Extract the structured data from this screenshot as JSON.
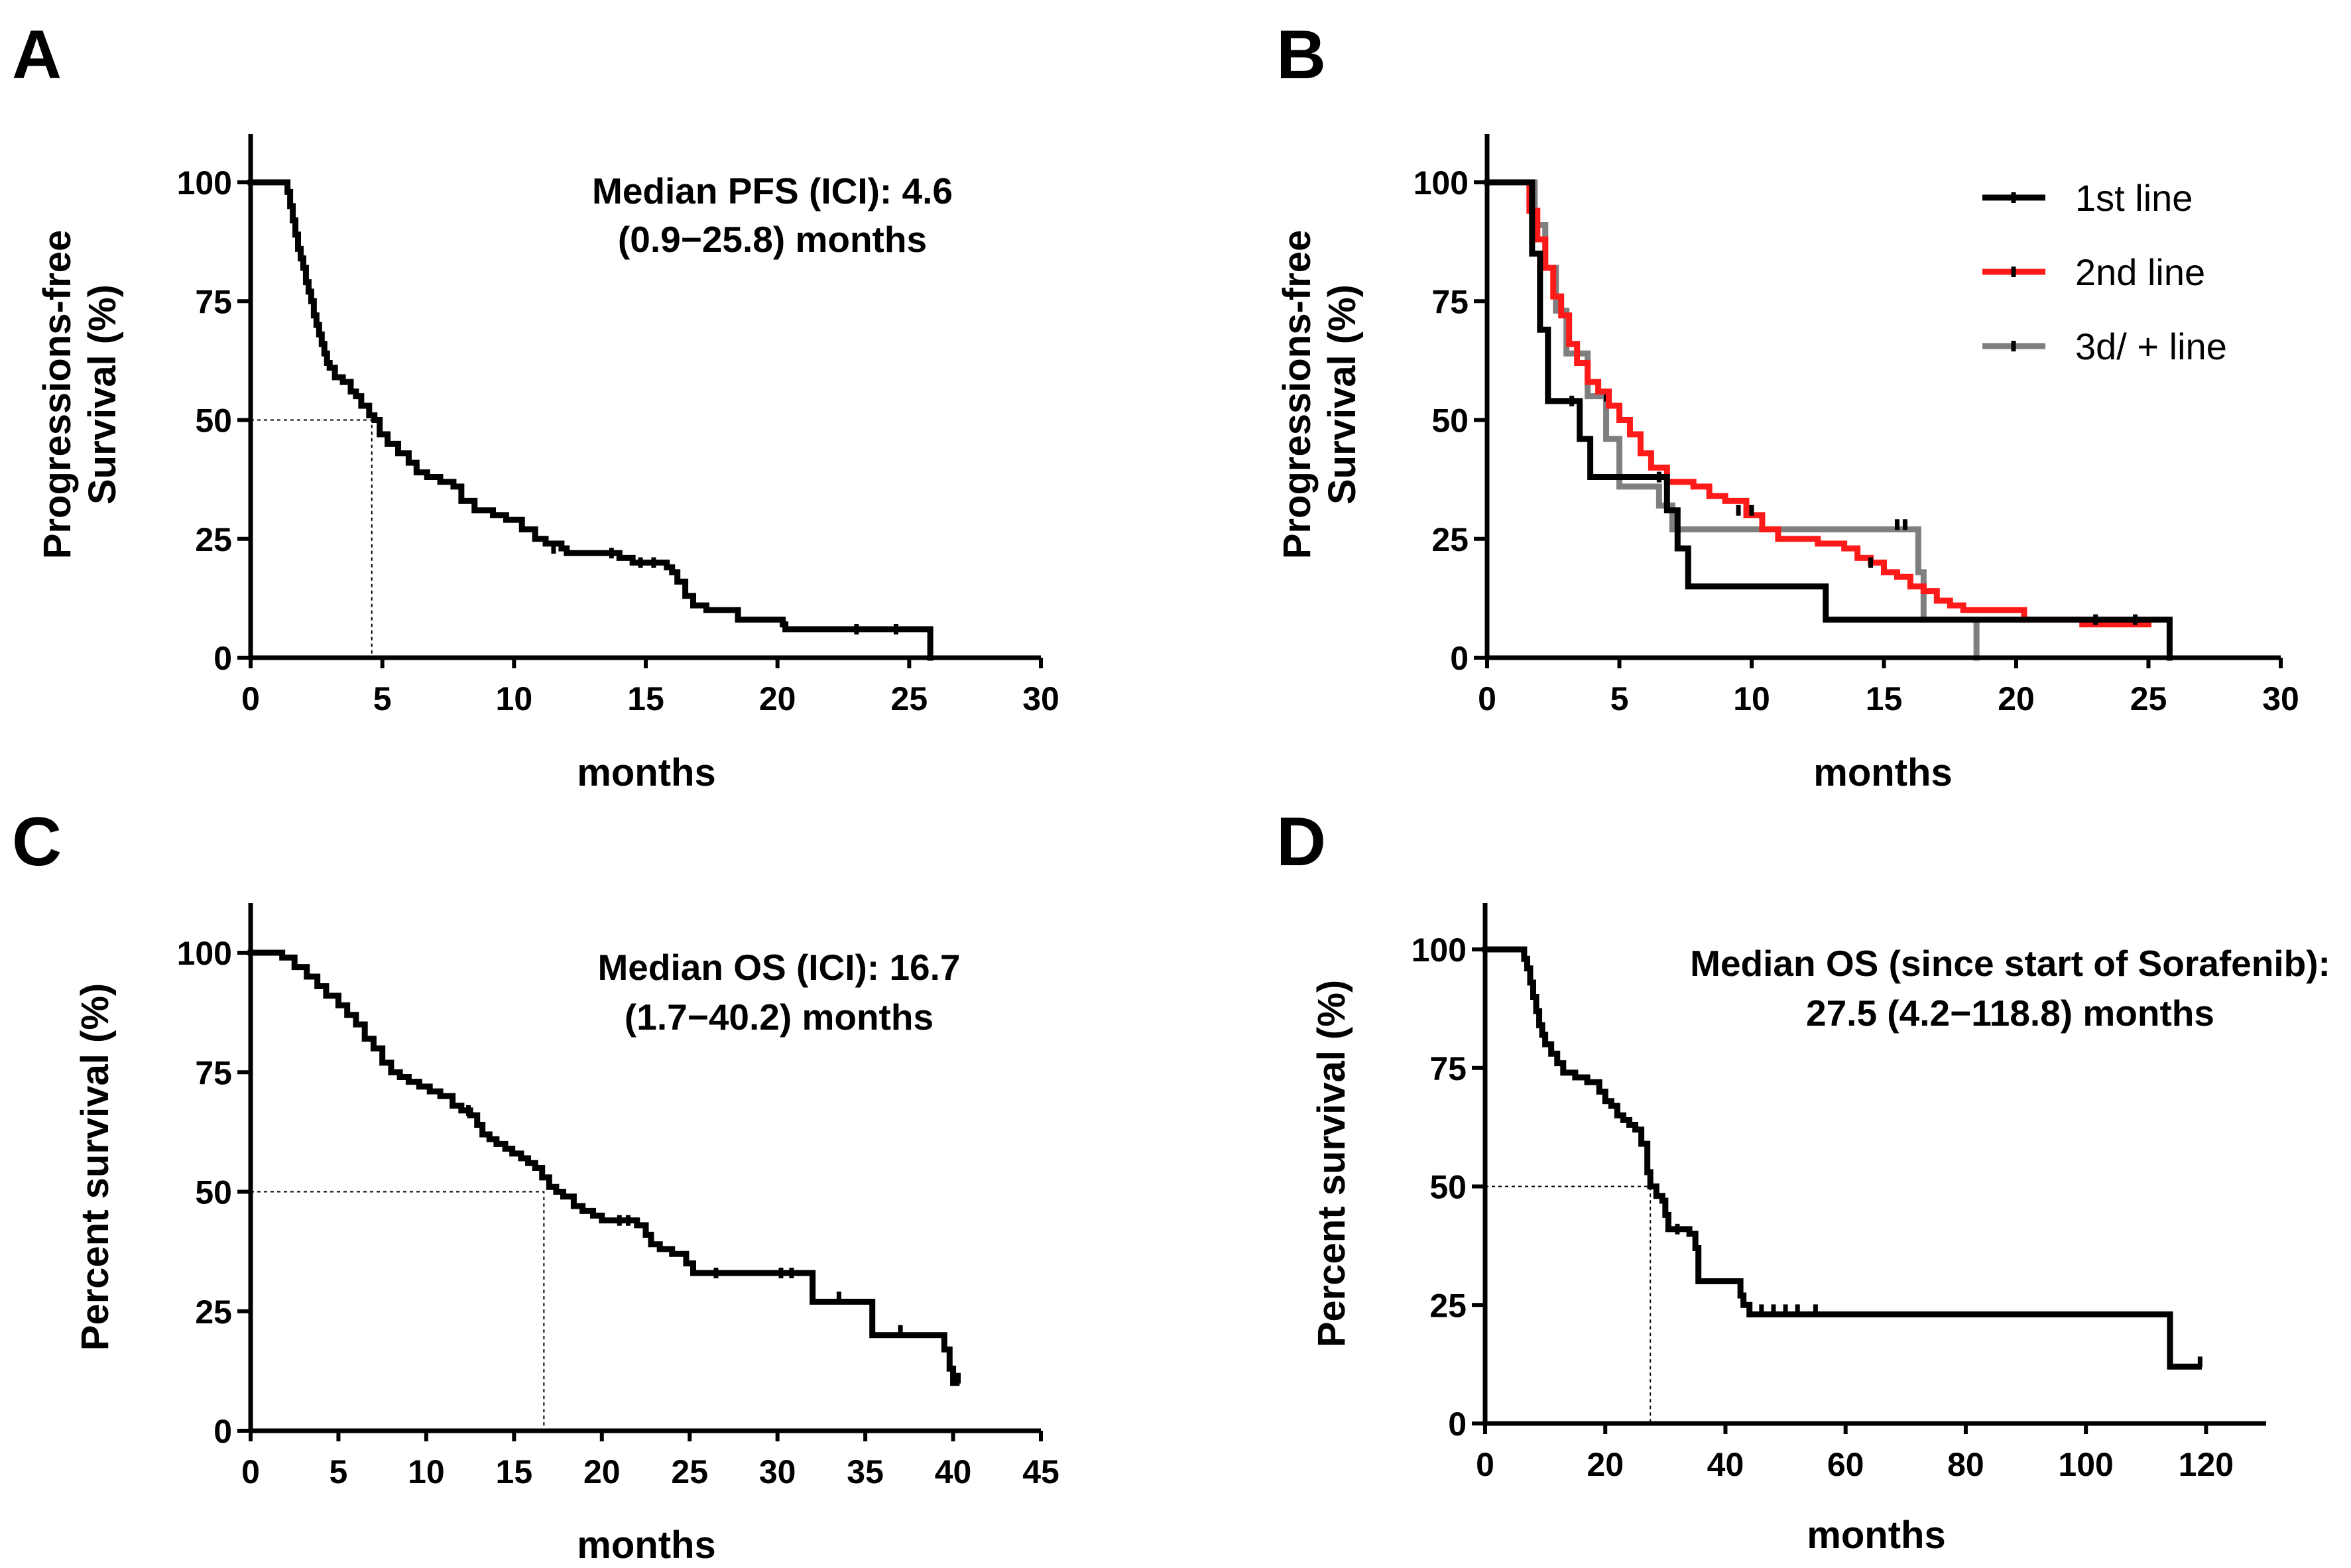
{
  "chart_data": [
    {
      "panel": "A",
      "type": "line",
      "ylabel_lines": [
        "Progressions-free",
        "Survival (%)"
      ],
      "xlabel": "months",
      "xlim": [
        0,
        30
      ],
      "ylim": [
        0,
        110
      ],
      "xticks": [
        0,
        5,
        10,
        15,
        20,
        25,
        30
      ],
      "yticks": [
        0,
        25,
        50,
        75,
        100
      ],
      "annotation_lines": [
        "Median PFS (ICI):  4.6",
        "(0.9−25.8) months"
      ],
      "median_x": 4.6,
      "series": [
        {
          "name": "ICI",
          "color": "#000000",
          "steps": [
            [
              0,
              100
            ],
            [
              1.3,
              100
            ],
            [
              1.4,
              98
            ],
            [
              1.5,
              95
            ],
            [
              1.6,
              92
            ],
            [
              1.7,
              89
            ],
            [
              1.8,
              86
            ],
            [
              1.9,
              84
            ],
            [
              2.0,
              82
            ],
            [
              2.1,
              79
            ],
            [
              2.2,
              77
            ],
            [
              2.3,
              75
            ],
            [
              2.4,
              72
            ],
            [
              2.5,
              70
            ],
            [
              2.6,
              68
            ],
            [
              2.7,
              66
            ],
            [
              2.8,
              64
            ],
            [
              2.9,
              62
            ],
            [
              3.0,
              61
            ],
            [
              3.2,
              59
            ],
            [
              3.5,
              58
            ],
            [
              3.8,
              56
            ],
            [
              4.0,
              55
            ],
            [
              4.2,
              53
            ],
            [
              4.5,
              51
            ],
            [
              4.7,
              50
            ],
            [
              4.9,
              47
            ],
            [
              5.2,
              45
            ],
            [
              5.6,
              43
            ],
            [
              6.0,
              41
            ],
            [
              6.3,
              39
            ],
            [
              6.7,
              38
            ],
            [
              7.2,
              37
            ],
            [
              7.7,
              36
            ],
            [
              8.0,
              33
            ],
            [
              8.5,
              31
            ],
            [
              9.2,
              30
            ],
            [
              9.7,
              29
            ],
            [
              10.3,
              27
            ],
            [
              10.8,
              25
            ],
            [
              11.2,
              24
            ],
            [
              11.8,
              23
            ],
            [
              12.0,
              22
            ],
            [
              14.0,
              21
            ],
            [
              14.5,
              20
            ],
            [
              15.5,
              20
            ],
            [
              15.8,
              19
            ],
            [
              16.0,
              18
            ],
            [
              16.2,
              16
            ],
            [
              16.5,
              13
            ],
            [
              16.8,
              11
            ],
            [
              17.3,
              10
            ],
            [
              18.5,
              8
            ],
            [
              20.2,
              7
            ],
            [
              20.3,
              6
            ],
            [
              25.8,
              6
            ],
            [
              25.8,
              0
            ]
          ],
          "censor": [
            [
              11.5,
              23
            ],
            [
              13.7,
              22
            ],
            [
              14.8,
              20
            ],
            [
              15.3,
              20
            ],
            [
              23.0,
              6
            ],
            [
              24.5,
              6
            ]
          ]
        }
      ]
    },
    {
      "panel": "B",
      "type": "line",
      "ylabel_lines": [
        "Progressions-free",
        "Survival (%)"
      ],
      "xlabel": "months",
      "xlim": [
        0,
        30
      ],
      "ylim": [
        0,
        110
      ],
      "xticks": [
        0,
        5,
        10,
        15,
        20,
        25,
        30
      ],
      "yticks": [
        0,
        25,
        50,
        75,
        100
      ],
      "legend_location": "top-right",
      "series": [
        {
          "name": "3d/ + line",
          "color": "#7f7f7f",
          "steps": [
            [
              0,
              100
            ],
            [
              1.4,
              100
            ],
            [
              1.8,
              91
            ],
            [
              2.2,
              82
            ],
            [
              2.6,
              73
            ],
            [
              3.0,
              64
            ],
            [
              3.8,
              55
            ],
            [
              4.5,
              46
            ],
            [
              5.0,
              36
            ],
            [
              6.5,
              32
            ],
            [
              7.0,
              27
            ],
            [
              16.0,
              27
            ],
            [
              16.3,
              18
            ],
            [
              16.5,
              8
            ],
            [
              18.5,
              8
            ],
            [
              18.5,
              0
            ]
          ],
          "censor": [
            [
              4.5,
              55
            ],
            [
              15.5,
              28
            ],
            [
              15.8,
              28
            ]
          ]
        },
        {
          "name": "2nd line",
          "color": "#ff1a1a",
          "steps": [
            [
              0,
              100
            ],
            [
              1.3,
              100
            ],
            [
              1.6,
              94
            ],
            [
              1.9,
              88
            ],
            [
              2.2,
              82
            ],
            [
              2.5,
              76
            ],
            [
              2.8,
              72
            ],
            [
              3.1,
              66
            ],
            [
              3.4,
              62
            ],
            [
              3.8,
              58
            ],
            [
              4.2,
              56
            ],
            [
              4.6,
              53
            ],
            [
              5.0,
              50
            ],
            [
              5.4,
              47
            ],
            [
              5.8,
              43
            ],
            [
              6.2,
              40
            ],
            [
              6.8,
              37
            ],
            [
              7.8,
              36
            ],
            [
              8.4,
              34
            ],
            [
              9.0,
              33
            ],
            [
              9.8,
              30
            ],
            [
              10.4,
              27
            ],
            [
              11.0,
              25
            ],
            [
              12.5,
              24
            ],
            [
              13.5,
              23
            ],
            [
              14.0,
              21
            ],
            [
              14.5,
              20
            ],
            [
              15.0,
              18
            ],
            [
              15.5,
              17
            ],
            [
              16.0,
              15
            ],
            [
              16.5,
              14
            ],
            [
              17.0,
              12
            ],
            [
              17.5,
              11
            ],
            [
              18.0,
              10
            ],
            [
              20.3,
              8
            ],
            [
              22.5,
              7
            ],
            [
              25.0,
              7
            ]
          ],
          "censor": [
            [
              9.5,
              31
            ],
            [
              10.0,
              31
            ],
            [
              14.5,
              20
            ],
            [
              23.0,
              8
            ],
            [
              24.5,
              8
            ]
          ]
        },
        {
          "name": "1st line",
          "color": "#000000",
          "steps": [
            [
              0,
              100
            ],
            [
              1.5,
              100
            ],
            [
              1.7,
              85
            ],
            [
              2.0,
              69
            ],
            [
              2.3,
              54
            ],
            [
              3.5,
              46
            ],
            [
              3.9,
              38
            ],
            [
              6.8,
              31
            ],
            [
              7.2,
              23
            ],
            [
              7.6,
              15
            ],
            [
              12.8,
              8
            ],
            [
              25.8,
              8
            ],
            [
              25.8,
              0
            ]
          ],
          "censor": [
            [
              3.2,
              54
            ],
            [
              6.5,
              38
            ]
          ]
        }
      ]
    },
    {
      "panel": "C",
      "type": "line",
      "ylabel_lines": [
        "Percent survival (%)"
      ],
      "xlabel": "months",
      "xlim": [
        0,
        45
      ],
      "ylim": [
        0,
        110
      ],
      "xticks": [
        0,
        5,
        10,
        15,
        20,
        25,
        30,
        35,
        40,
        45
      ],
      "yticks": [
        0,
        25,
        50,
        75,
        100
      ],
      "annotation_lines": [
        "Median OS (ICI):  16.7",
        "(1.7−40.2) months"
      ],
      "median_x": 16.7,
      "series": [
        {
          "name": "ICI",
          "color": "#000000",
          "steps": [
            [
              0,
              100
            ],
            [
              1.5,
              100
            ],
            [
              1.8,
              99
            ],
            [
              2.5,
              97
            ],
            [
              3.2,
              95
            ],
            [
              3.8,
              93
            ],
            [
              4.3,
              91
            ],
            [
              5.0,
              89
            ],
            [
              5.5,
              87
            ],
            [
              6.0,
              85
            ],
            [
              6.5,
              82
            ],
            [
              7.0,
              80
            ],
            [
              7.5,
              77
            ],
            [
              8.0,
              75
            ],
            [
              8.5,
              74
            ],
            [
              9.0,
              73
            ],
            [
              9.6,
              72
            ],
            [
              10.2,
              71
            ],
            [
              10.8,
              70
            ],
            [
              11.5,
              68
            ],
            [
              12.0,
              67
            ],
            [
              12.5,
              66
            ],
            [
              12.9,
              64
            ],
            [
              13.2,
              62
            ],
            [
              13.6,
              61
            ],
            [
              14.0,
              60
            ],
            [
              14.5,
              59
            ],
            [
              14.9,
              58
            ],
            [
              15.4,
              57
            ],
            [
              15.8,
              56
            ],
            [
              16.2,
              55
            ],
            [
              16.6,
              53
            ],
            [
              17.0,
              51
            ],
            [
              17.4,
              50
            ],
            [
              17.8,
              49
            ],
            [
              18.4,
              47
            ],
            [
              18.9,
              46
            ],
            [
              19.5,
              45
            ],
            [
              20.0,
              44
            ],
            [
              22.0,
              43
            ],
            [
              22.5,
              41
            ],
            [
              22.8,
              39
            ],
            [
              23.3,
              38
            ],
            [
              24.0,
              37
            ],
            [
              24.8,
              35
            ],
            [
              25.2,
              33
            ],
            [
              32.0,
              33
            ],
            [
              32.0,
              27
            ],
            [
              35.4,
              27
            ],
            [
              35.4,
              20
            ],
            [
              39.5,
              20
            ],
            [
              39.5,
              17
            ],
            [
              39.8,
              13
            ],
            [
              40.0,
              10
            ],
            [
              40.2,
              10
            ]
          ],
          "censor": [
            [
              12.4,
              67
            ],
            [
              21.0,
              44
            ],
            [
              21.5,
              44
            ],
            [
              26.5,
              33
            ],
            [
              30.2,
              33
            ],
            [
              30.8,
              33
            ],
            [
              33.5,
              28
            ],
            [
              37.0,
              21
            ],
            [
              40.3,
              11
            ]
          ]
        }
      ]
    },
    {
      "panel": "D",
      "type": "line",
      "ylabel_lines": [
        "Percent survival (%)"
      ],
      "xlabel": "months",
      "xlim": [
        0,
        130
      ],
      "ylim": [
        0,
        110
      ],
      "xticks": [
        0,
        20,
        40,
        60,
        80,
        100,
        120
      ],
      "yticks": [
        0,
        25,
        50,
        75,
        100
      ],
      "annotation_lines": [
        "Median OS (since start of Sorafenib):",
        "27.5 (4.2−118.8) months"
      ],
      "median_x": 27.5,
      "series": [
        {
          "name": "Sorafenib",
          "color": "#000000",
          "steps": [
            [
              0,
              100
            ],
            [
              6.0,
              100
            ],
            [
              6.5,
              98
            ],
            [
              7.0,
              96
            ],
            [
              7.5,
              93
            ],
            [
              8.0,
              90
            ],
            [
              8.5,
              87
            ],
            [
              9.0,
              84
            ],
            [
              9.5,
              82
            ],
            [
              10.0,
              80
            ],
            [
              11.0,
              78
            ],
            [
              12.0,
              76
            ],
            [
              13.0,
              74
            ],
            [
              15.0,
              73
            ],
            [
              17.0,
              72
            ],
            [
              19.0,
              70
            ],
            [
              20.0,
              68
            ],
            [
              21.0,
              67
            ],
            [
              22.0,
              65
            ],
            [
              23.0,
              64
            ],
            [
              24.0,
              63
            ],
            [
              25.0,
              62
            ],
            [
              26.0,
              59
            ],
            [
              27.0,
              53
            ],
            [
              27.5,
              50
            ],
            [
              28.5,
              48
            ],
            [
              29.5,
              47
            ],
            [
              30.0,
              44
            ],
            [
              30.5,
              41
            ],
            [
              34.0,
              40
            ],
            [
              35.0,
              37
            ],
            [
              35.5,
              30
            ],
            [
              42.0,
              30
            ],
            [
              42.5,
              27
            ],
            [
              43.0,
              25
            ],
            [
              44.0,
              23
            ],
            [
              114.0,
              23
            ],
            [
              114.0,
              12
            ],
            [
              118.8,
              12
            ]
          ],
          "censor": [
            [
              32.0,
              41
            ],
            [
              46.0,
              24
            ],
            [
              48.0,
              24
            ],
            [
              50.0,
              24
            ],
            [
              52.0,
              24
            ],
            [
              55.0,
              24
            ],
            [
              119.0,
              13
            ]
          ]
        }
      ]
    }
  ],
  "legend_items": [
    "1st line",
    "2nd line",
    "3d/ + line"
  ]
}
